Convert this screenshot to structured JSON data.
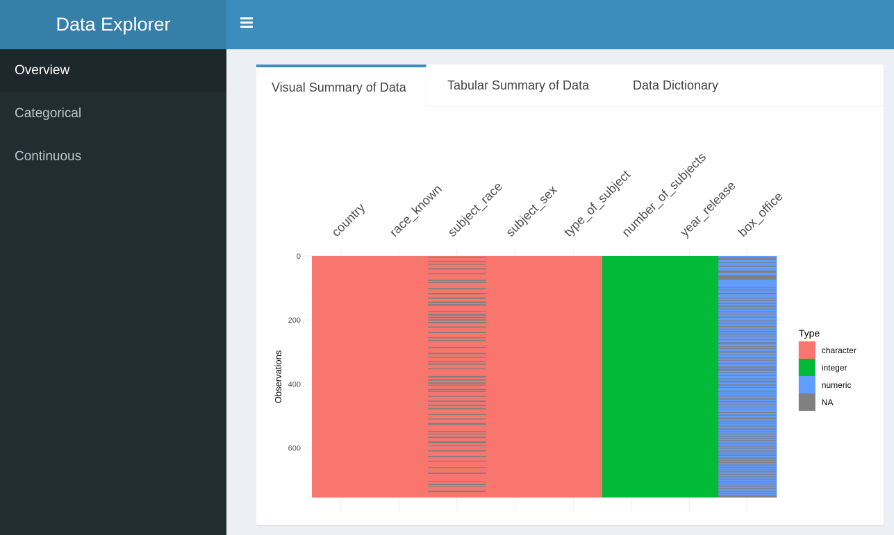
{
  "app": {
    "title": "Data Explorer"
  },
  "sidebar": {
    "items": [
      {
        "label": "Overview",
        "active": true
      },
      {
        "label": "Categorical",
        "active": false
      },
      {
        "label": "Continuous",
        "active": false
      }
    ]
  },
  "tabs": [
    {
      "label": "Visual Summary of Data",
      "active": true
    },
    {
      "label": "Tabular Summary of Data",
      "active": false
    },
    {
      "label": "Data Dictionary",
      "active": false
    }
  ],
  "chart_data": {
    "type": "heatmap",
    "columns": [
      "country",
      "race_known",
      "subject_race",
      "subject_sex",
      "type_of_subject",
      "number_of_subjects",
      "year_release",
      "box_office"
    ],
    "column_types": [
      "character",
      "character",
      "character",
      "character",
      "character",
      "integer",
      "integer",
      "numeric"
    ],
    "ylabel": "Observations",
    "yticks": [
      0,
      200,
      400,
      600
    ],
    "ylim": [
      0,
      755
    ],
    "legend": {
      "title": "Type",
      "position": "right",
      "entries": [
        {
          "label": "character",
          "color": "#f8766d"
        },
        {
          "label": "integer",
          "color": "#00ba38"
        },
        {
          "label": "numeric",
          "color": "#619cff"
        },
        {
          "label": "NA",
          "color": "#808080"
        }
      ]
    },
    "missing": {
      "subject_race": [
        [
          2,
          5
        ],
        [
          15,
          18
        ],
        [
          24,
          27
        ],
        [
          38,
          42
        ],
        [
          54,
          57
        ],
        [
          74,
          78
        ],
        [
          80,
          84
        ],
        [
          100,
          104
        ],
        [
          115,
          120
        ],
        [
          129,
          134
        ],
        [
          142,
          147
        ],
        [
          150,
          155
        ],
        [
          172,
          175
        ],
        [
          181,
          186
        ],
        [
          190,
          194
        ],
        [
          198,
          202
        ],
        [
          206,
          210
        ],
        [
          220,
          224
        ],
        [
          237,
          241
        ],
        [
          254,
          257
        ],
        [
          262,
          266
        ],
        [
          284,
          288
        ],
        [
          303,
          307
        ],
        [
          315,
          318
        ],
        [
          328,
          332
        ],
        [
          336,
          340
        ],
        [
          351,
          354
        ],
        [
          375,
          380
        ],
        [
          385,
          390
        ],
        [
          395,
          399
        ],
        [
          402,
          405
        ],
        [
          415,
          419
        ],
        [
          421,
          425
        ],
        [
          437,
          440
        ],
        [
          452,
          456
        ],
        [
          465,
          469
        ],
        [
          475,
          479
        ],
        [
          494,
          497
        ],
        [
          508,
          511
        ],
        [
          522,
          528
        ],
        [
          547,
          551
        ],
        [
          555,
          558
        ],
        [
          565,
          569
        ],
        [
          579,
          585
        ],
        [
          592,
          595
        ],
        [
          607,
          611
        ],
        [
          625,
          629
        ],
        [
          640,
          643
        ],
        [
          660,
          663
        ],
        [
          677,
          681
        ],
        [
          703,
          705
        ],
        [
          712,
          716
        ],
        [
          720,
          722
        ],
        [
          734,
          738
        ]
      ],
      "box_office": [
        [
          5,
          12
        ],
        [
          20,
          22
        ],
        [
          30,
          34
        ],
        [
          45,
          52
        ],
        [
          60,
          74
        ],
        [
          98,
          100
        ],
        [
          105,
          106
        ],
        [
          115,
          120
        ],
        [
          130,
          133
        ],
        [
          138,
          141
        ],
        [
          146,
          149
        ],
        [
          155,
          159
        ],
        [
          164,
          167
        ],
        [
          173,
          176
        ],
        [
          181,
          183
        ],
        [
          190,
          193
        ],
        [
          201,
          204
        ],
        [
          209,
          212
        ],
        [
          219,
          222
        ],
        [
          227,
          229
        ],
        [
          234,
          237
        ],
        [
          242,
          245
        ],
        [
          249,
          250
        ],
        [
          260,
          263
        ],
        [
          270,
          276
        ],
        [
          282,
          284
        ],
        [
          288,
          291
        ],
        [
          298,
          302
        ],
        [
          307,
          308
        ],
        [
          317,
          320
        ],
        [
          325,
          327
        ],
        [
          334,
          337
        ],
        [
          345,
          349
        ],
        [
          352,
          358
        ],
        [
          363,
          365
        ],
        [
          372,
          375
        ],
        [
          383,
          385
        ],
        [
          390,
          394
        ],
        [
          401,
          405
        ],
        [
          410,
          412
        ],
        [
          421,
          424
        ],
        [
          428,
          429
        ],
        [
          436,
          439
        ],
        [
          445,
          448
        ],
        [
          454,
          457
        ],
        [
          463,
          465
        ],
        [
          471,
          473
        ],
        [
          478,
          480
        ],
        [
          488,
          491
        ],
        [
          496,
          499
        ],
        [
          505,
          510
        ],
        [
          515,
          518
        ],
        [
          522,
          524
        ],
        [
          530,
          533
        ],
        [
          539,
          543
        ],
        [
          548,
          551
        ],
        [
          555,
          558
        ],
        [
          562,
          565
        ],
        [
          568,
          570
        ],
        [
          575,
          578
        ],
        [
          584,
          587
        ],
        [
          593,
          596
        ],
        [
          600,
          602
        ],
        [
          608,
          611
        ],
        [
          615,
          617
        ],
        [
          622,
          625
        ],
        [
          630,
          633
        ],
        [
          637,
          640
        ],
        [
          644,
          647
        ],
        [
          652,
          655
        ],
        [
          659,
          662
        ],
        [
          667,
          670
        ],
        [
          673,
          676
        ],
        [
          681,
          684
        ],
        [
          689,
          692
        ],
        [
          696,
          699
        ],
        [
          703,
          706
        ],
        [
          711,
          714
        ],
        [
          718,
          721
        ],
        [
          726,
          729
        ],
        [
          734,
          737
        ],
        [
          741,
          744
        ],
        [
          748,
          755
        ]
      ]
    }
  }
}
